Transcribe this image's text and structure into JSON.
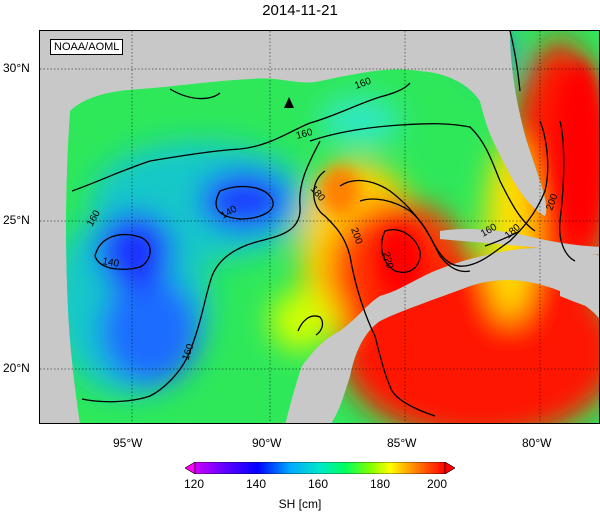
{
  "title": "2014-11-21",
  "credit": "NOAA/AOML",
  "lat_labels": [
    "30°N",
    "25°N",
    "20°N"
  ],
  "lon_labels": [
    "95°W",
    "90°W",
    "85°W",
    "80°W"
  ],
  "contour_labels": [
    "160",
    "160",
    "160",
    "160",
    "140",
    "140",
    "180",
    "200",
    "220",
    "160",
    "180",
    "200"
  ],
  "colorbar": {
    "ticks": [
      "120",
      "140",
      "160",
      "180",
      "200"
    ],
    "unit_label": "SH [cm]",
    "colors": [
      "#ff00ff",
      "#7a00ff",
      "#0000ff",
      "#00a0ff",
      "#00e0e0",
      "#00ff80",
      "#40ff00",
      "#c8ff00",
      "#ffff00",
      "#ffb000",
      "#ff6000",
      "#ff0000"
    ]
  },
  "marker": "black-triangle"
}
